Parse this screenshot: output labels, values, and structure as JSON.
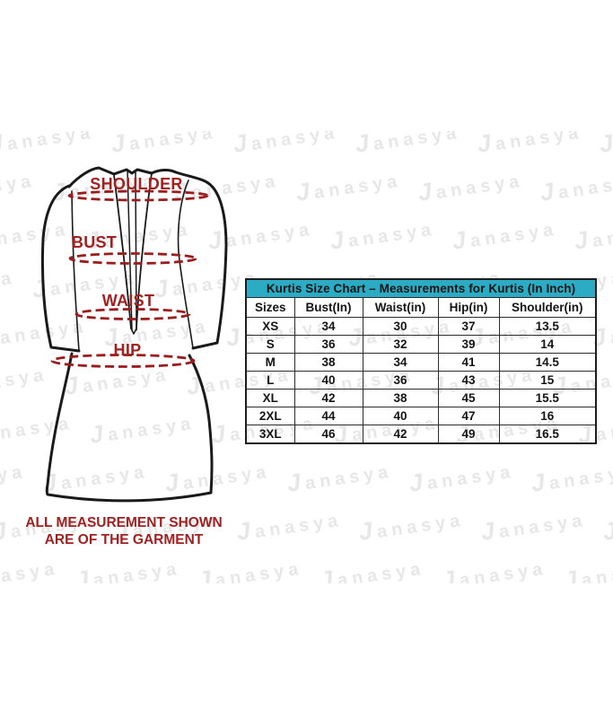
{
  "brand_watermark": {
    "text": "Janasya"
  },
  "diagram": {
    "labels": {
      "shoulder": "SHOULDER",
      "bust": "BUST",
      "waist": "WAIST",
      "hip": "HIP"
    },
    "note": {
      "line1": "ALL MEASUREMENT SHOWN",
      "line2": "ARE OF THE GARMENT"
    }
  },
  "chart_data": {
    "type": "table",
    "title": "Kurtis Size Chart – Measurements for Kurtis (In Inch)",
    "columns": [
      "Sizes",
      "Bust(In)",
      "Waist(in)",
      "Hip(in)",
      "Shoulder(in)"
    ],
    "rows": [
      [
        "XS",
        "34",
        "30",
        "37",
        "13.5"
      ],
      [
        "S",
        "36",
        "32",
        "39",
        "14"
      ],
      [
        "M",
        "38",
        "34",
        "41",
        "14.5"
      ],
      [
        "L",
        "40",
        "36",
        "43",
        "15"
      ],
      [
        "XL",
        "42",
        "38",
        "45",
        "15.5"
      ],
      [
        "2XL",
        "44",
        "40",
        "47",
        "16"
      ],
      [
        "3XL",
        "46",
        "42",
        "49",
        "16.5"
      ]
    ]
  },
  "colors": {
    "table_header_bg": "#2BACC4",
    "table_title_text": "#0B2A45",
    "measurement_red": "#A32020",
    "dash_red": "#9B1C1C",
    "outline_black": "#1A1A1A",
    "watermark_gray": "#E7E7E7"
  }
}
